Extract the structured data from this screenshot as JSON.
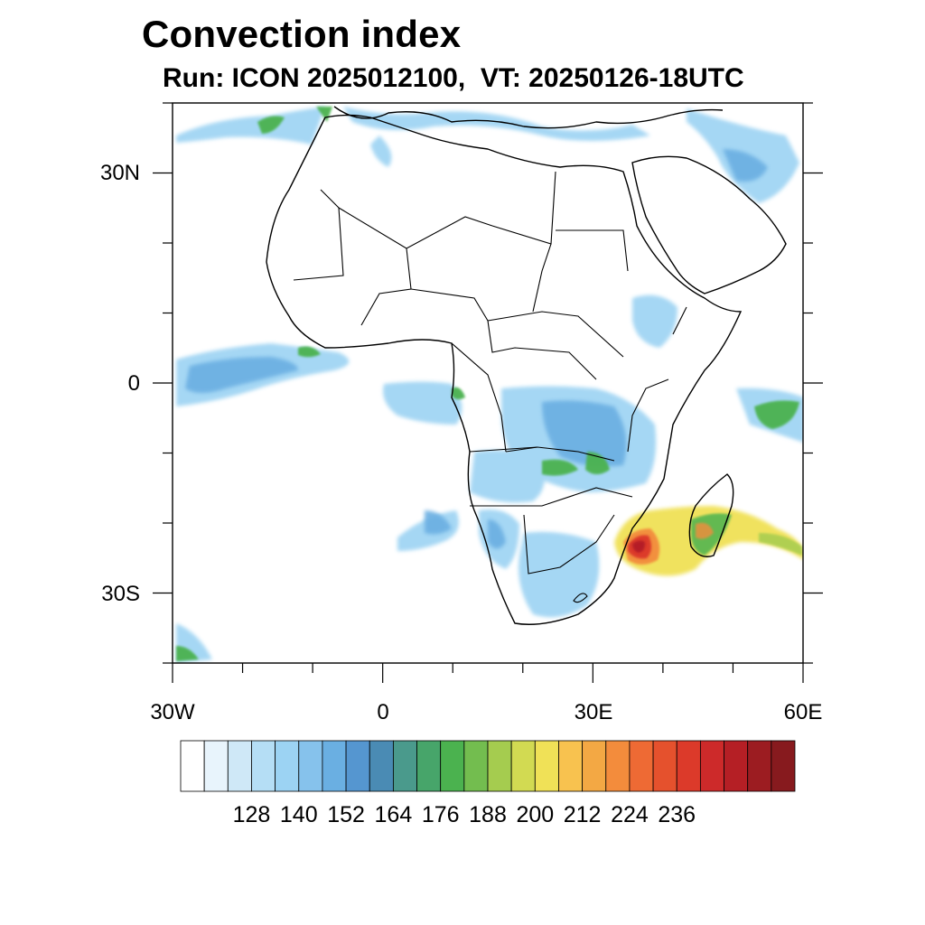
{
  "title": "Convection index",
  "subtitle": "Run: ICON 2025012100,  VT: 20250126-18UTC",
  "axes": {
    "lat_labels": [
      "30N",
      "0",
      "30S"
    ],
    "lon_labels": [
      "30W",
      "0",
      "30E",
      "60E"
    ]
  },
  "colorbar": {
    "labels": [
      "128",
      "140",
      "152",
      "164",
      "176",
      "188",
      "200",
      "212",
      "224",
      "236"
    ],
    "colors": [
      "#ffffff",
      "#e8f4fc",
      "#cfe8f7",
      "#b5def5",
      "#9cd3f3",
      "#86c2ec",
      "#6aafe2",
      "#5596d0",
      "#4a8bb4",
      "#4a9a8c",
      "#47a56a",
      "#4bb24f",
      "#73bd4f",
      "#a5cc4f",
      "#d2da52",
      "#f0e157",
      "#f8c24f",
      "#f3a844",
      "#f38c3c",
      "#ee6a34",
      "#e5512d",
      "#dc3a2a",
      "#cd2a2a",
      "#b51f25",
      "#9c1c21",
      "#871a1e"
    ]
  },
  "map": {
    "color_scheme": {
      "low": "#8cc8ee",
      "mid": "#4bb24f",
      "high": "#dc3a2a",
      "peak": "#b51f25"
    },
    "features": [
      "coastlines",
      "country-borders",
      "convection-index-shading"
    ]
  }
}
